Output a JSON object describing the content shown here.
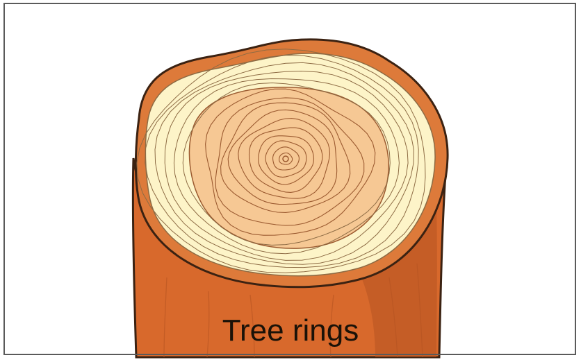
{
  "diagram": {
    "caption": "Tree rings",
    "colors": {
      "bark": "#d8692c",
      "bark_shadow": "#b65422",
      "outline": "#3b2212",
      "bark_ring": "#dd7a3a",
      "sapwood": "#fdf4c8",
      "heartwood": "#f6c894",
      "ring_line_light": "#8d6b44",
      "ring_line_dark": "#9b5a30"
    },
    "icons": [
      "log-cross-section"
    ]
  }
}
